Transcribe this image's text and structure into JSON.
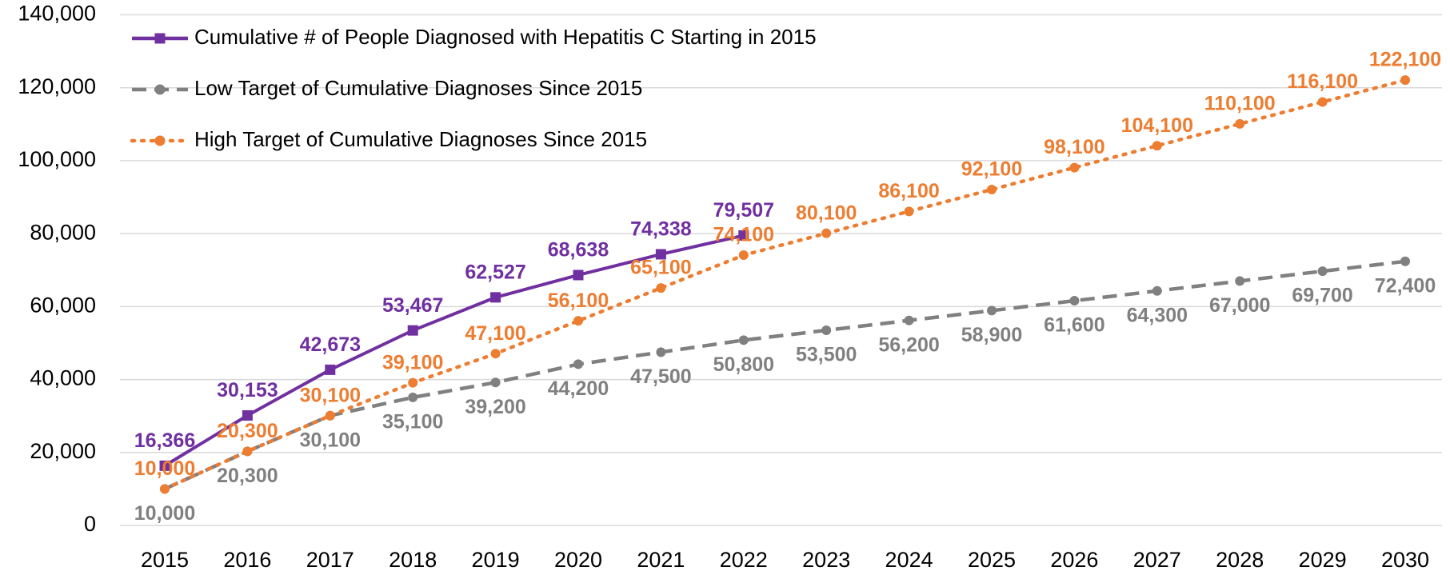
{
  "chart_data": {
    "type": "line",
    "categories": [
      "2015",
      "2016",
      "2017",
      "2018",
      "2019",
      "2020",
      "2021",
      "2022",
      "2023",
      "2024",
      "2025",
      "2026",
      "2027",
      "2028",
      "2029",
      "2030"
    ],
    "series": [
      {
        "name": "Cumulative # of People Diagnosed with Hepatitis C Starting in 2015",
        "color": "#7030a0",
        "style": "solid",
        "marker": "square",
        "values": [
          16366,
          30153,
          42673,
          53467,
          62527,
          68638,
          74338,
          79507,
          null,
          null,
          null,
          null,
          null,
          null,
          null,
          null
        ],
        "value_labels": [
          "16,366",
          "30,153",
          "42,673",
          "53,467",
          "62,527",
          "68,638",
          "74,338",
          "79,507",
          null,
          null,
          null,
          null,
          null,
          null,
          null,
          null
        ]
      },
      {
        "name": "Low Target of Cumulative Diagnoses Since 2015",
        "color": "#808080",
        "style": "dashed",
        "marker": "circle",
        "values": [
          10000,
          20300,
          30100,
          35100,
          39200,
          44200,
          47500,
          50800,
          53500,
          56200,
          58900,
          61600,
          64300,
          67000,
          69700,
          72400
        ],
        "value_labels": [
          "10,000",
          "20,300",
          "30,100",
          "35,100",
          "39,200",
          "44,200",
          "47,500",
          "50,800",
          "53,500",
          "56,200",
          "58,900",
          "61,600",
          "64,300",
          "67,000",
          "69,700",
          "72,400"
        ]
      },
      {
        "name": "High Target of Cumulative Diagnoses Since 2015",
        "color": "#ed7d31",
        "style": "dotted",
        "marker": "circle",
        "values": [
          10000,
          20300,
          30100,
          39100,
          47100,
          56100,
          65100,
          74100,
          80100,
          86100,
          92100,
          98100,
          104100,
          110100,
          116100,
          122100
        ],
        "value_labels": [
          "10,000",
          "20,300",
          "30,100",
          "39,100",
          "47,100",
          "56,100",
          "65,100",
          "74,100",
          "80,100",
          "86,100",
          "92,100",
          "98,100",
          "104,100",
          "110,100",
          "116,100",
          "122,100"
        ]
      }
    ],
    "ylim": [
      0,
      140000
    ],
    "yticks": [
      0,
      {
        "value": 20000,
        "label": "20,000"
      },
      {
        "value": 40000,
        "label": "40,000"
      },
      {
        "value": 60000,
        "label": "60,000"
      },
      {
        "value": 80000,
        "label": "80,000"
      },
      {
        "value": 100000,
        "label": "100,000"
      },
      {
        "value": 120000,
        "label": "120,000"
      },
      {
        "value": 140000,
        "label": "140,000"
      }
    ],
    "grid": true
  }
}
